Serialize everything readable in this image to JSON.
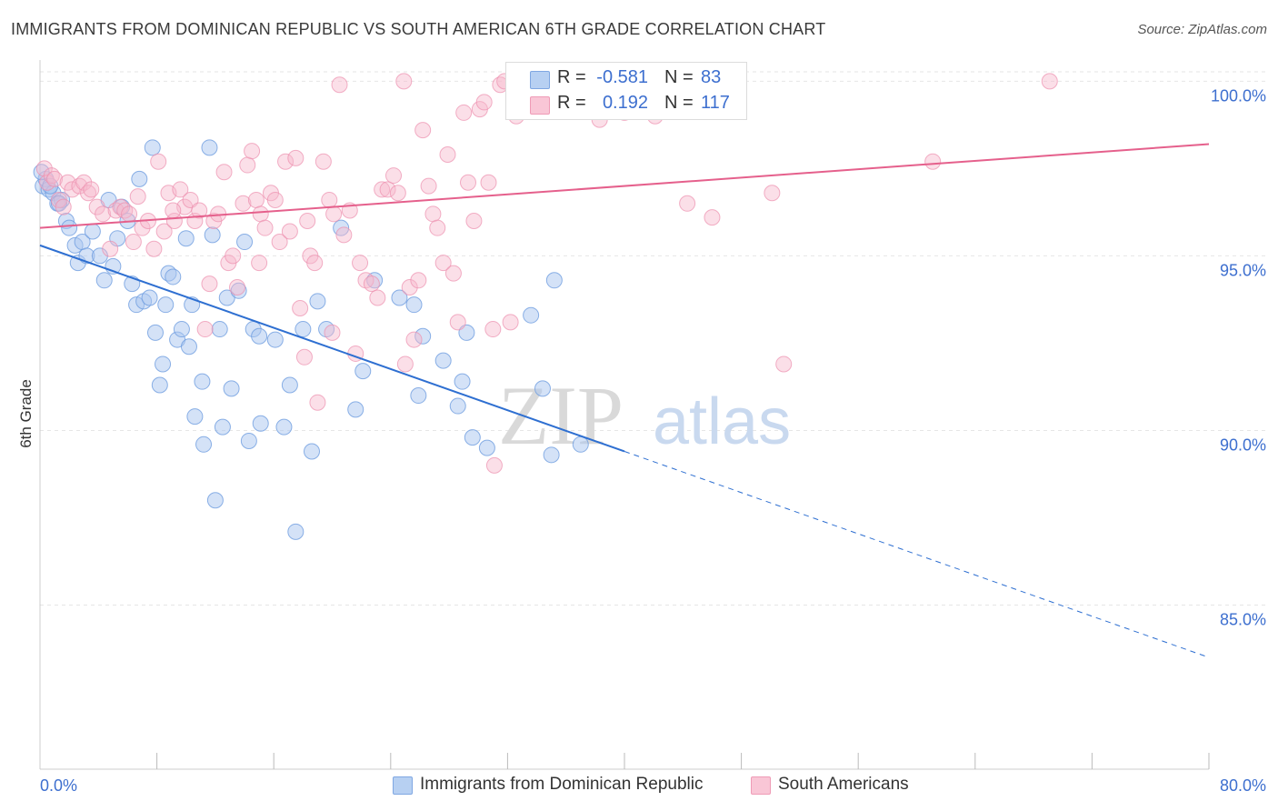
{
  "header": {
    "title": "IMMIGRANTS FROM DOMINICAN REPUBLIC VS SOUTH AMERICAN 6TH GRADE CORRELATION CHART",
    "source": "Source: ZipAtlas.com"
  },
  "legend": {
    "series1": {
      "r_label": "R =",
      "r_value": "-0.581",
      "n_label": "N =",
      "n_value": "83"
    },
    "series2": {
      "r_label": "R =",
      "r_value": "0.192",
      "n_label": "N =",
      "n_value": "117"
    }
  },
  "bottom_legend": {
    "series1": "Immigrants from Dominican Republic",
    "series2": "South Americans"
  },
  "watermark": {
    "zip": "ZIP",
    "atlas": "atlas"
  },
  "colors": {
    "blue_fill": "#a9c6ef",
    "blue_stroke": "#6f9ee0",
    "blue_line": "#2e6fd1",
    "pink_fill": "#f6b9cc",
    "pink_stroke": "#ec8fae",
    "pink_line": "#e5608c",
    "axis_label": "#3d6fcf",
    "grid": "#e6e6e6"
  },
  "chart_data": {
    "type": "scatter",
    "title": "IMMIGRANTS FROM DOMINICAN REPUBLIC VS SOUTH AMERICAN 6TH GRADE CORRELATION CHART",
    "xlabel": "",
    "ylabel": "6th Grade",
    "xlim": [
      0,
      80
    ],
    "ylim": [
      80.3,
      100.4
    ],
    "x_tick_labels": [
      "0.0%",
      "80.0%"
    ],
    "y_ticks": [
      85.0,
      90.0,
      95.0,
      100.0
    ],
    "y_tick_labels": [
      "85.0%",
      "90.0%",
      "95.0%",
      "100.0%"
    ],
    "grid": true,
    "legend_placement": "top-center and bottom",
    "series": [
      {
        "name": "Immigrants from Dominican Republic",
        "color": "#a9c6ef",
        "trend": {
          "x": [
            0,
            40
          ],
          "y": [
            95.3,
            89.4
          ],
          "dashed_to": [
            80,
            83.5
          ]
        },
        "points": [
          [
            0.2,
            97.0
          ],
          [
            0.4,
            97.2
          ],
          [
            0.6,
            96.9
          ],
          [
            0.9,
            96.8
          ],
          [
            1.2,
            96.5
          ],
          [
            1.5,
            96.6
          ],
          [
            1.8,
            96.0
          ],
          [
            2.0,
            95.8
          ],
          [
            2.4,
            95.3
          ],
          [
            2.6,
            94.8
          ],
          [
            2.9,
            95.4
          ],
          [
            3.2,
            95.0
          ],
          [
            3.6,
            95.7
          ],
          [
            4.1,
            95.0
          ],
          [
            4.4,
            94.3
          ],
          [
            4.7,
            96.6
          ],
          [
            5.0,
            94.7
          ],
          [
            5.3,
            95.5
          ],
          [
            5.6,
            96.4
          ],
          [
            6.0,
            96.0
          ],
          [
            6.3,
            94.2
          ],
          [
            6.6,
            93.6
          ],
          [
            6.8,
            97.2
          ],
          [
            7.1,
            93.7
          ],
          [
            7.5,
            93.8
          ],
          [
            7.7,
            98.1
          ],
          [
            7.9,
            92.8
          ],
          [
            8.2,
            91.3
          ],
          [
            8.4,
            91.9
          ],
          [
            8.6,
            93.6
          ],
          [
            8.8,
            94.5
          ],
          [
            9.1,
            94.4
          ],
          [
            9.4,
            92.6
          ],
          [
            9.7,
            92.9
          ],
          [
            10.0,
            95.5
          ],
          [
            10.2,
            92.4
          ],
          [
            10.4,
            93.6
          ],
          [
            10.6,
            90.4
          ],
          [
            11.1,
            91.4
          ],
          [
            11.2,
            89.6
          ],
          [
            11.6,
            98.1
          ],
          [
            11.8,
            95.6
          ],
          [
            12.0,
            88.0
          ],
          [
            12.3,
            92.9
          ],
          [
            12.5,
            90.1
          ],
          [
            12.8,
            93.8
          ],
          [
            13.1,
            91.2
          ],
          [
            13.6,
            94.0
          ],
          [
            14.0,
            95.4
          ],
          [
            14.3,
            89.7
          ],
          [
            14.6,
            92.9
          ],
          [
            15.0,
            92.7
          ],
          [
            15.1,
            90.2
          ],
          [
            16.1,
            92.6
          ],
          [
            16.7,
            90.1
          ],
          [
            17.1,
            91.3
          ],
          [
            17.5,
            87.1
          ],
          [
            18.0,
            92.9
          ],
          [
            18.6,
            89.4
          ],
          [
            19.0,
            93.7
          ],
          [
            19.6,
            92.9
          ],
          [
            20.6,
            95.8
          ],
          [
            21.6,
            90.6
          ],
          [
            22.1,
            91.7
          ],
          [
            22.9,
            94.3
          ],
          [
            24.6,
            93.8
          ],
          [
            25.6,
            93.6
          ],
          [
            25.9,
            91.0
          ],
          [
            26.2,
            92.7
          ],
          [
            27.6,
            92.0
          ],
          [
            28.6,
            90.7
          ],
          [
            28.9,
            91.4
          ],
          [
            29.2,
            92.8
          ],
          [
            29.6,
            89.8
          ],
          [
            30.6,
            89.5
          ],
          [
            33.6,
            93.3
          ],
          [
            34.4,
            91.2
          ],
          [
            35.0,
            89.3
          ],
          [
            35.2,
            94.3
          ],
          [
            37.0,
            89.6
          ],
          [
            0.1,
            97.4
          ],
          [
            0.7,
            97.0
          ],
          [
            1.3,
            96.5
          ]
        ]
      },
      {
        "name": "South Americans",
        "color": "#f6b9cc",
        "trend": {
          "x": [
            0,
            80
          ],
          "y": [
            95.8,
            98.2
          ]
        },
        "points": [
          [
            0.3,
            97.5
          ],
          [
            0.5,
            97.1
          ],
          [
            0.8,
            97.3
          ],
          [
            1.0,
            97.2
          ],
          [
            1.3,
            96.6
          ],
          [
            1.6,
            96.4
          ],
          [
            1.9,
            97.1
          ],
          [
            2.2,
            96.9
          ],
          [
            2.7,
            97.0
          ],
          [
            3.0,
            97.1
          ],
          [
            3.3,
            96.8
          ],
          [
            3.5,
            96.9
          ],
          [
            3.9,
            96.4
          ],
          [
            4.3,
            96.2
          ],
          [
            4.8,
            95.2
          ],
          [
            5.2,
            96.3
          ],
          [
            5.5,
            96.4
          ],
          [
            5.8,
            96.3
          ],
          [
            6.1,
            96.2
          ],
          [
            6.4,
            95.4
          ],
          [
            6.7,
            96.7
          ],
          [
            7.0,
            95.8
          ],
          [
            7.4,
            96.0
          ],
          [
            7.8,
            95.2
          ],
          [
            8.1,
            97.7
          ],
          [
            8.5,
            95.7
          ],
          [
            8.8,
            96.8
          ],
          [
            9.2,
            96.0
          ],
          [
            9.6,
            96.9
          ],
          [
            9.9,
            96.4
          ],
          [
            10.3,
            96.6
          ],
          [
            10.6,
            96.0
          ],
          [
            10.9,
            96.3
          ],
          [
            11.3,
            92.9
          ],
          [
            11.6,
            94.2
          ],
          [
            11.9,
            96.0
          ],
          [
            12.2,
            96.2
          ],
          [
            12.6,
            97.4
          ],
          [
            12.9,
            94.8
          ],
          [
            13.2,
            95.0
          ],
          [
            13.5,
            94.1
          ],
          [
            13.9,
            96.5
          ],
          [
            14.2,
            97.6
          ],
          [
            14.5,
            98.0
          ],
          [
            14.8,
            96.6
          ],
          [
            15.1,
            96.2
          ],
          [
            15.4,
            95.8
          ],
          [
            15.8,
            96.8
          ],
          [
            16.1,
            96.6
          ],
          [
            16.4,
            95.4
          ],
          [
            16.8,
            97.7
          ],
          [
            17.1,
            95.7
          ],
          [
            17.5,
            97.8
          ],
          [
            17.8,
            93.5
          ],
          [
            18.1,
            92.1
          ],
          [
            18.5,
            95.0
          ],
          [
            18.8,
            94.8
          ],
          [
            19.0,
            90.8
          ],
          [
            19.4,
            97.7
          ],
          [
            19.8,
            96.6
          ],
          [
            20.1,
            96.2
          ],
          [
            20.5,
            99.9
          ],
          [
            20.8,
            95.6
          ],
          [
            21.2,
            96.3
          ],
          [
            21.6,
            92.2
          ],
          [
            21.9,
            94.8
          ],
          [
            22.3,
            94.3
          ],
          [
            22.7,
            94.2
          ],
          [
            23.1,
            93.8
          ],
          [
            23.4,
            96.9
          ],
          [
            23.8,
            96.9
          ],
          [
            24.2,
            97.3
          ],
          [
            24.5,
            96.8
          ],
          [
            24.9,
            100.0
          ],
          [
            25.3,
            94.1
          ],
          [
            25.6,
            92.6
          ],
          [
            25.9,
            94.3
          ],
          [
            26.2,
            98.6
          ],
          [
            26.6,
            97.0
          ],
          [
            26.9,
            96.2
          ],
          [
            27.2,
            95.8
          ],
          [
            27.6,
            94.8
          ],
          [
            27.9,
            97.9
          ],
          [
            28.3,
            94.5
          ],
          [
            28.6,
            93.1
          ],
          [
            29.0,
            99.1
          ],
          [
            29.3,
            97.1
          ],
          [
            29.7,
            96.0
          ],
          [
            30.1,
            99.2
          ],
          [
            30.4,
            99.4
          ],
          [
            30.7,
            97.1
          ],
          [
            31.1,
            89.0
          ],
          [
            31.5,
            99.9
          ],
          [
            31.8,
            100.0
          ],
          [
            32.2,
            93.1
          ],
          [
            32.6,
            99.0
          ],
          [
            33.1,
            99.6
          ],
          [
            33.7,
            99.9
          ],
          [
            34.2,
            99.4
          ],
          [
            34.8,
            99.6
          ],
          [
            38.3,
            98.9
          ],
          [
            39.1,
            99.2
          ],
          [
            40.0,
            99.1
          ],
          [
            41.6,
            99.3
          ],
          [
            42.1,
            99.0
          ],
          [
            44.3,
            96.5
          ],
          [
            46.0,
            96.1
          ],
          [
            50.1,
            96.8
          ],
          [
            50.9,
            91.9
          ],
          [
            69.1,
            100.0
          ],
          [
            61.1,
            97.7
          ],
          [
            20.0,
            92.8
          ],
          [
            9.1,
            96.3
          ],
          [
            15.0,
            94.8
          ],
          [
            18.3,
            96.0
          ],
          [
            25.0,
            91.9
          ],
          [
            31.0,
            92.9
          ]
        ]
      }
    ]
  }
}
